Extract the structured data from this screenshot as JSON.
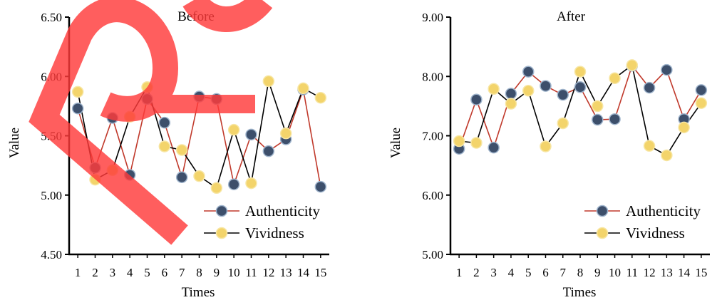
{
  "chart_data": [
    {
      "type": "line",
      "title": "Before",
      "xlabel": "Times",
      "ylabel": "Value",
      "ylim": [
        4.5,
        6.5
      ],
      "yticks": [
        "4.50",
        "5.00",
        "5.50",
        "6.00",
        "6.50"
      ],
      "x": [
        1,
        2,
        3,
        4,
        5,
        6,
        7,
        8,
        9,
        10,
        11,
        12,
        13,
        14,
        15
      ],
      "legend_position": "bottom-right",
      "grid": false,
      "series": [
        {
          "name": "Authenticity",
          "line_color": "#c0392b",
          "marker_color": "#3d4f6b",
          "values": [
            5.73,
            5.23,
            5.65,
            5.17,
            5.81,
            5.61,
            5.15,
            5.83,
            5.81,
            5.09,
            5.51,
            5.37,
            5.47,
            5.89,
            5.07
          ]
        },
        {
          "name": "Vividness",
          "line_color": "#000000",
          "marker_color": "#f3d46b",
          "values": [
            5.87,
            5.13,
            5.21,
            5.66,
            5.91,
            5.41,
            5.38,
            5.16,
            5.06,
            5.55,
            5.1,
            5.96,
            5.52,
            5.9,
            5.82
          ]
        }
      ]
    },
    {
      "type": "line",
      "title": "After",
      "xlabel": "Times",
      "ylabel": "Value",
      "ylim": [
        5.0,
        9.0
      ],
      "yticks": [
        "5.00",
        "6.00",
        "7.00",
        "8.00",
        "9.00"
      ],
      "x": [
        1,
        2,
        3,
        4,
        5,
        6,
        7,
        8,
        9,
        10,
        11,
        12,
        13,
        14,
        15
      ],
      "legend_position": "bottom-right",
      "grid": false,
      "series": [
        {
          "name": "Authenticity",
          "line_color": "#c0392b",
          "marker_color": "#3d4f6b",
          "values": [
            6.78,
            7.61,
            6.8,
            7.71,
            8.08,
            7.84,
            7.69,
            7.82,
            7.27,
            7.28,
            8.18,
            7.81,
            8.11,
            7.28,
            7.77
          ]
        },
        {
          "name": "Vividness",
          "line_color": "#000000",
          "marker_color": "#f3d46b",
          "values": [
            6.91,
            6.88,
            7.79,
            7.54,
            7.76,
            6.82,
            7.21,
            8.08,
            7.5,
            7.97,
            8.19,
            6.83,
            6.67,
            7.14,
            7.55
          ]
        }
      ]
    }
  ],
  "watermark": {
    "text": "Re",
    "color": "#ff3b3b"
  }
}
